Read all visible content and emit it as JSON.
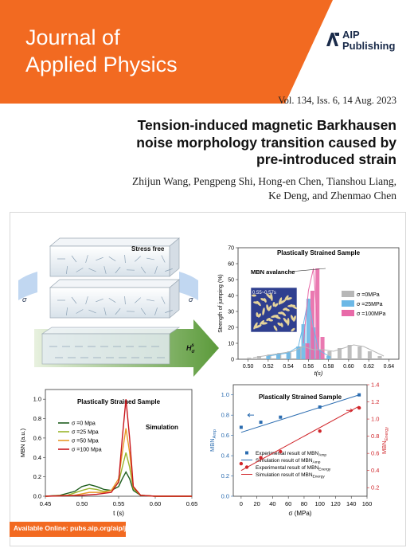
{
  "journal": {
    "title_line1": "Journal of",
    "title_line2": "Applied Physics"
  },
  "publisher": {
    "name_line1": "AIP",
    "name_line2": "Publishing"
  },
  "issue": {
    "text": "Vol. 134, Iss. 6, 14 Aug. 2023"
  },
  "article": {
    "title_line1": "Tension-induced magnetic Barkhausen",
    "title_line2": "noise morphology transition caused by",
    "title_line3": "pre-introduced strain",
    "authors_line1": "Zhijun Wang, Pengpeng Shi, Hong-en Chen, Tianshou Liang,",
    "authors_line2": "Ke Deng, and Zhenmao Chen"
  },
  "schematic": {
    "stress_free_label": "Stress free",
    "sigma_left": "σ",
    "sigma_right": "σ",
    "field_label": "H",
    "field_sub": "σ",
    "field_sup": "s"
  },
  "footer": {
    "text": "Available Online: pubs.aip.org/aip/jap"
  },
  "colors": {
    "brand_orange": "#f26a21",
    "dark_navy": "#1a2b4a"
  },
  "chart_data": [
    {
      "type": "bar",
      "title": "Plastically Strained Sample",
      "annotation": "MBN avalanche",
      "inset_label": "0.55~0.57s",
      "xlabel": "t(s)",
      "ylabel": "Strength of jumping (%)",
      "xlim": [
        0.49,
        0.65
      ],
      "ylim": [
        0,
        70
      ],
      "xticks": [
        "0.50",
        "0.52",
        "0.54",
        "0.56",
        "0.58",
        "0.60",
        "0.62",
        "0.64"
      ],
      "yticks": [
        "0",
        "10",
        "20",
        "30",
        "40",
        "50",
        "60",
        "70"
      ],
      "legend_placement": "right",
      "series": [
        {
          "name": "σ =0MPa",
          "color": "#b7b7b7",
          "x": [
            0.505,
            0.515,
            0.525,
            0.535,
            0.545,
            0.555,
            0.565,
            0.575,
            0.585,
            0.595,
            0.605,
            0.615,
            0.625,
            0.635
          ],
          "y": [
            1,
            2,
            3,
            4,
            5,
            8,
            6,
            6,
            5,
            7,
            9,
            8,
            5,
            2
          ]
        },
        {
          "name": "σ =25MPa",
          "color": "#6cb8e6",
          "x": [
            0.52,
            0.53,
            0.54,
            0.55,
            0.555,
            0.56,
            0.565,
            0.57,
            0.58
          ],
          "y": [
            2,
            3,
            4,
            8,
            22,
            38,
            20,
            6,
            2
          ]
        },
        {
          "name": "σ =100MPa",
          "color": "#e86aa8",
          "x": [
            0.555,
            0.56,
            0.565,
            0.57
          ],
          "y": [
            10,
            43,
            57,
            14
          ]
        }
      ]
    },
    {
      "type": "line",
      "title": "Plastically Strained Sample",
      "annotation": "Simulation",
      "xlabel": "t (s)",
      "ylabel": "MBN (a.u.)",
      "xlim": [
        0.45,
        0.65
      ],
      "ylim": [
        0,
        1.1
      ],
      "xticks": [
        "0.45",
        "0.50",
        "0.55",
        "0.60",
        "0.65"
      ],
      "yticks": [
        "0.0",
        "0.2",
        "0.4",
        "0.6",
        "0.8",
        "1.0"
      ],
      "legend_placement": "left",
      "series": [
        {
          "name": "σ =0 Mpa",
          "color": "#1f5e1f",
          "x": [
            0.45,
            0.47,
            0.49,
            0.5,
            0.51,
            0.52,
            0.53,
            0.54,
            0.55,
            0.555,
            0.56,
            0.565,
            0.57,
            0.58,
            0.6,
            0.65
          ],
          "y": [
            0,
            0.01,
            0.05,
            0.1,
            0.12,
            0.1,
            0.07,
            0.06,
            0.1,
            0.18,
            0.25,
            0.18,
            0.06,
            0.01,
            0,
            0
          ]
        },
        {
          "name": "σ =25 Mpa",
          "color": "#9ab52c",
          "x": [
            0.45,
            0.48,
            0.5,
            0.51,
            0.52,
            0.53,
            0.54,
            0.55,
            0.555,
            0.56,
            0.565,
            0.57,
            0.58,
            0.6,
            0.65
          ],
          "y": [
            0,
            0.01,
            0.06,
            0.08,
            0.07,
            0.05,
            0.06,
            0.14,
            0.3,
            0.45,
            0.3,
            0.08,
            0.01,
            0,
            0
          ]
        },
        {
          "name": "σ =50 Mpa",
          "color": "#e89a28",
          "x": [
            0.45,
            0.49,
            0.51,
            0.53,
            0.54,
            0.55,
            0.555,
            0.56,
            0.565,
            0.57,
            0.58,
            0.6,
            0.65
          ],
          "y": [
            0,
            0.01,
            0.04,
            0.04,
            0.06,
            0.18,
            0.45,
            0.7,
            0.45,
            0.1,
            0.01,
            0,
            0
          ]
        },
        {
          "name": "σ =100 Mpa",
          "color": "#c8161d",
          "x": [
            0.45,
            0.5,
            0.52,
            0.54,
            0.55,
            0.555,
            0.56,
            0.565,
            0.57,
            0.58,
            0.6,
            0.65
          ],
          "y": [
            0,
            0.01,
            0.02,
            0.04,
            0.15,
            0.6,
            1.0,
            0.6,
            0.1,
            0.01,
            0,
            0
          ]
        }
      ]
    },
    {
      "type": "scatter",
      "title": "Plastically Strained Sample",
      "xlabel": "σ (MPa)",
      "ylabel_left": "MBN",
      "ylabel_left_sub": "Amp",
      "ylabel_right": "MBN",
      "ylabel_right_sub": "Energy",
      "xlim": [
        -10,
        160
      ],
      "ylim_left": [
        0,
        1.1
      ],
      "ylim_right": [
        0.1,
        1.4
      ],
      "xticks": [
        "0",
        "20",
        "40",
        "60",
        "80",
        "100",
        "120",
        "140",
        "160"
      ],
      "yticks_left": [
        "0.0",
        "0.2",
        "0.4",
        "0.6",
        "0.8",
        "1.0"
      ],
      "yticks_right": [
        "0.2",
        "0.4",
        "0.6",
        "0.8",
        "1.0",
        "1.2",
        "1.4"
      ],
      "legend_placement": "bottom",
      "series": [
        {
          "name": "Experimental result of MBN",
          "name_sub": "Amp",
          "color": "#2b6cb0",
          "axis": "left",
          "kind": "points",
          "x": [
            0,
            25,
            50,
            100,
            150
          ],
          "y": [
            0.68,
            0.73,
            0.78,
            0.88,
            1.0
          ]
        },
        {
          "name": "Simulation result of MBN",
          "name_sub": "Amp",
          "color": "#2b6cb0",
          "axis": "left",
          "kind": "line",
          "x": [
            0,
            150
          ],
          "y": [
            0.63,
            1.0
          ]
        },
        {
          "name": "Experimental result of MBN",
          "name_sub": "Energy",
          "color": "#d0262b",
          "axis": "right",
          "kind": "points",
          "x": [
            0,
            25,
            50,
            100,
            150
          ],
          "y": [
            0.48,
            0.55,
            0.62,
            0.86,
            1.13
          ]
        },
        {
          "name": "Simulation result of MBN",
          "name_sub": "Energy",
          "color": "#d0262b",
          "axis": "right",
          "kind": "line",
          "x": [
            0,
            150
          ],
          "y": [
            0.4,
            1.15
          ]
        }
      ]
    }
  ]
}
